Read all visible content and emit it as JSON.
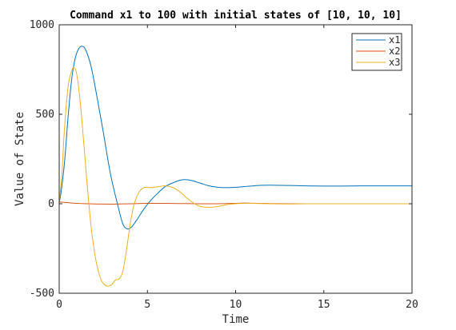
{
  "chart_data": {
    "type": "line",
    "title": "Command x1 to 100 with initial states of [10, 10, 10]",
    "xlabel": "Time",
    "ylabel": "Value of State",
    "xlim": [
      0,
      20
    ],
    "ylim": [
      -500,
      1000
    ],
    "xticks": [
      0,
      5,
      10,
      15,
      20
    ],
    "yticks": [
      -500,
      0,
      500,
      1000
    ],
    "legend_position": "top-right",
    "grid": false,
    "series": [
      {
        "name": "x1",
        "color": "#0072BD",
        "x": [
          0,
          0.1,
          0.3,
          0.5,
          0.7,
          0.9,
          1.1,
          1.3,
          1.5,
          1.8,
          2.1,
          2.5,
          2.9,
          3.3,
          3.6,
          3.85,
          4.1,
          4.4,
          4.8,
          5.2,
          5.6,
          6.0,
          6.4,
          6.8,
          7.1,
          7.5,
          8.0,
          8.5,
          9.0,
          9.5,
          10.0,
          10.5,
          11.0,
          11.5,
          12.0,
          13.0,
          14.0,
          15.0,
          16.0,
          17.0,
          18.0,
          19.0,
          20.0
        ],
        "y": [
          10,
          60,
          230,
          480,
          690,
          810,
          865,
          880,
          860,
          770,
          620,
          400,
          170,
          0,
          -110,
          -140,
          -130,
          -90,
          -30,
          20,
          60,
          95,
          115,
          130,
          135,
          130,
          115,
          100,
          92,
          90,
          92,
          96,
          100,
          103,
          104,
          102,
          100,
          99,
          99,
          100,
          100,
          100,
          100
        ]
      },
      {
        "name": "x2",
        "color": "#D95319",
        "x": [
          0,
          0.5,
          1,
          2,
          3,
          4,
          5,
          6,
          7,
          8,
          9,
          10,
          10.5,
          11,
          12,
          13,
          14,
          15,
          16,
          17,
          18,
          19,
          20
        ],
        "y": [
          10,
          6,
          2,
          -1,
          -2,
          0,
          2,
          2,
          1,
          0,
          0,
          2,
          4,
          3,
          1,
          0,
          0,
          0,
          0,
          0,
          0,
          0,
          0
        ]
      },
      {
        "name": "x3",
        "color": "#EDB120",
        "x": [
          0,
          0.15,
          0.3,
          0.5,
          0.7,
          0.85,
          1.0,
          1.2,
          1.4,
          1.6,
          1.8,
          2.0,
          2.2,
          2.4,
          2.6,
          2.8,
          3.0,
          3.2,
          3.4,
          3.6,
          3.8,
          4.0,
          4.2,
          4.4,
          4.6,
          4.8,
          5.0,
          5.2,
          5.6,
          6.0,
          6.4,
          6.8,
          7.2,
          7.6,
          8.0,
          8.5,
          9.0,
          9.5,
          10.0,
          10.5,
          11.0,
          12.0,
          13.0,
          14.0,
          15.0,
          16.0,
          18.0,
          20.0
        ],
        "y": [
          10,
          160,
          420,
          650,
          740,
          760,
          720,
          560,
          330,
          90,
          -120,
          -270,
          -370,
          -430,
          -455,
          -460,
          -450,
          -425,
          -420,
          -380,
          -270,
          -130,
          -20,
          40,
          75,
          90,
          92,
          90,
          95,
          100,
          92,
          70,
          35,
          5,
          -15,
          -20,
          -15,
          -5,
          0,
          2,
          2,
          0,
          -1,
          0,
          0,
          0,
          0,
          0
        ]
      }
    ]
  }
}
